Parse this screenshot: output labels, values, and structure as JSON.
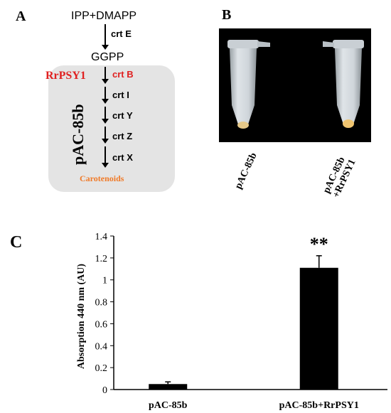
{
  "panels": {
    "a": "A",
    "b": "B",
    "c": "C"
  },
  "pathway": {
    "start": "IPP+DMAPP",
    "step1_enzyme": "crt E",
    "intermediate": "GGPP",
    "plasmid_label": "RrPSY1",
    "step2_enzyme": "crt B",
    "steps": [
      "crt I",
      "crt Y",
      "crt Z",
      "crt X"
    ],
    "product": "Carotenoids",
    "plasmid_box_label": "pAC-85b",
    "colors": {
      "red": "#e02020",
      "orange": "#f07a28",
      "box": "#e4e4e4"
    }
  },
  "photo": {
    "tube_labels": [
      "pAC-85b",
      "pAC-85b\n+RrPSY1"
    ]
  },
  "chart_data": {
    "type": "bar",
    "categories": [
      "pAC-85b",
      "pAC-85b+RrPSY1"
    ],
    "values": [
      0.05,
      1.11
    ],
    "errors": [
      0.02,
      0.11
    ],
    "significance": [
      "",
      "**"
    ],
    "ylabel": "Absorption 440 nm (AU)",
    "xlabel": "",
    "ylim": [
      0,
      1.4
    ],
    "yticks": [
      "0",
      "0.2",
      "0.4",
      "0.6",
      "0.8",
      "1",
      "1.2",
      "1.4"
    ],
    "bar_color": "#000000",
    "grid": false
  }
}
